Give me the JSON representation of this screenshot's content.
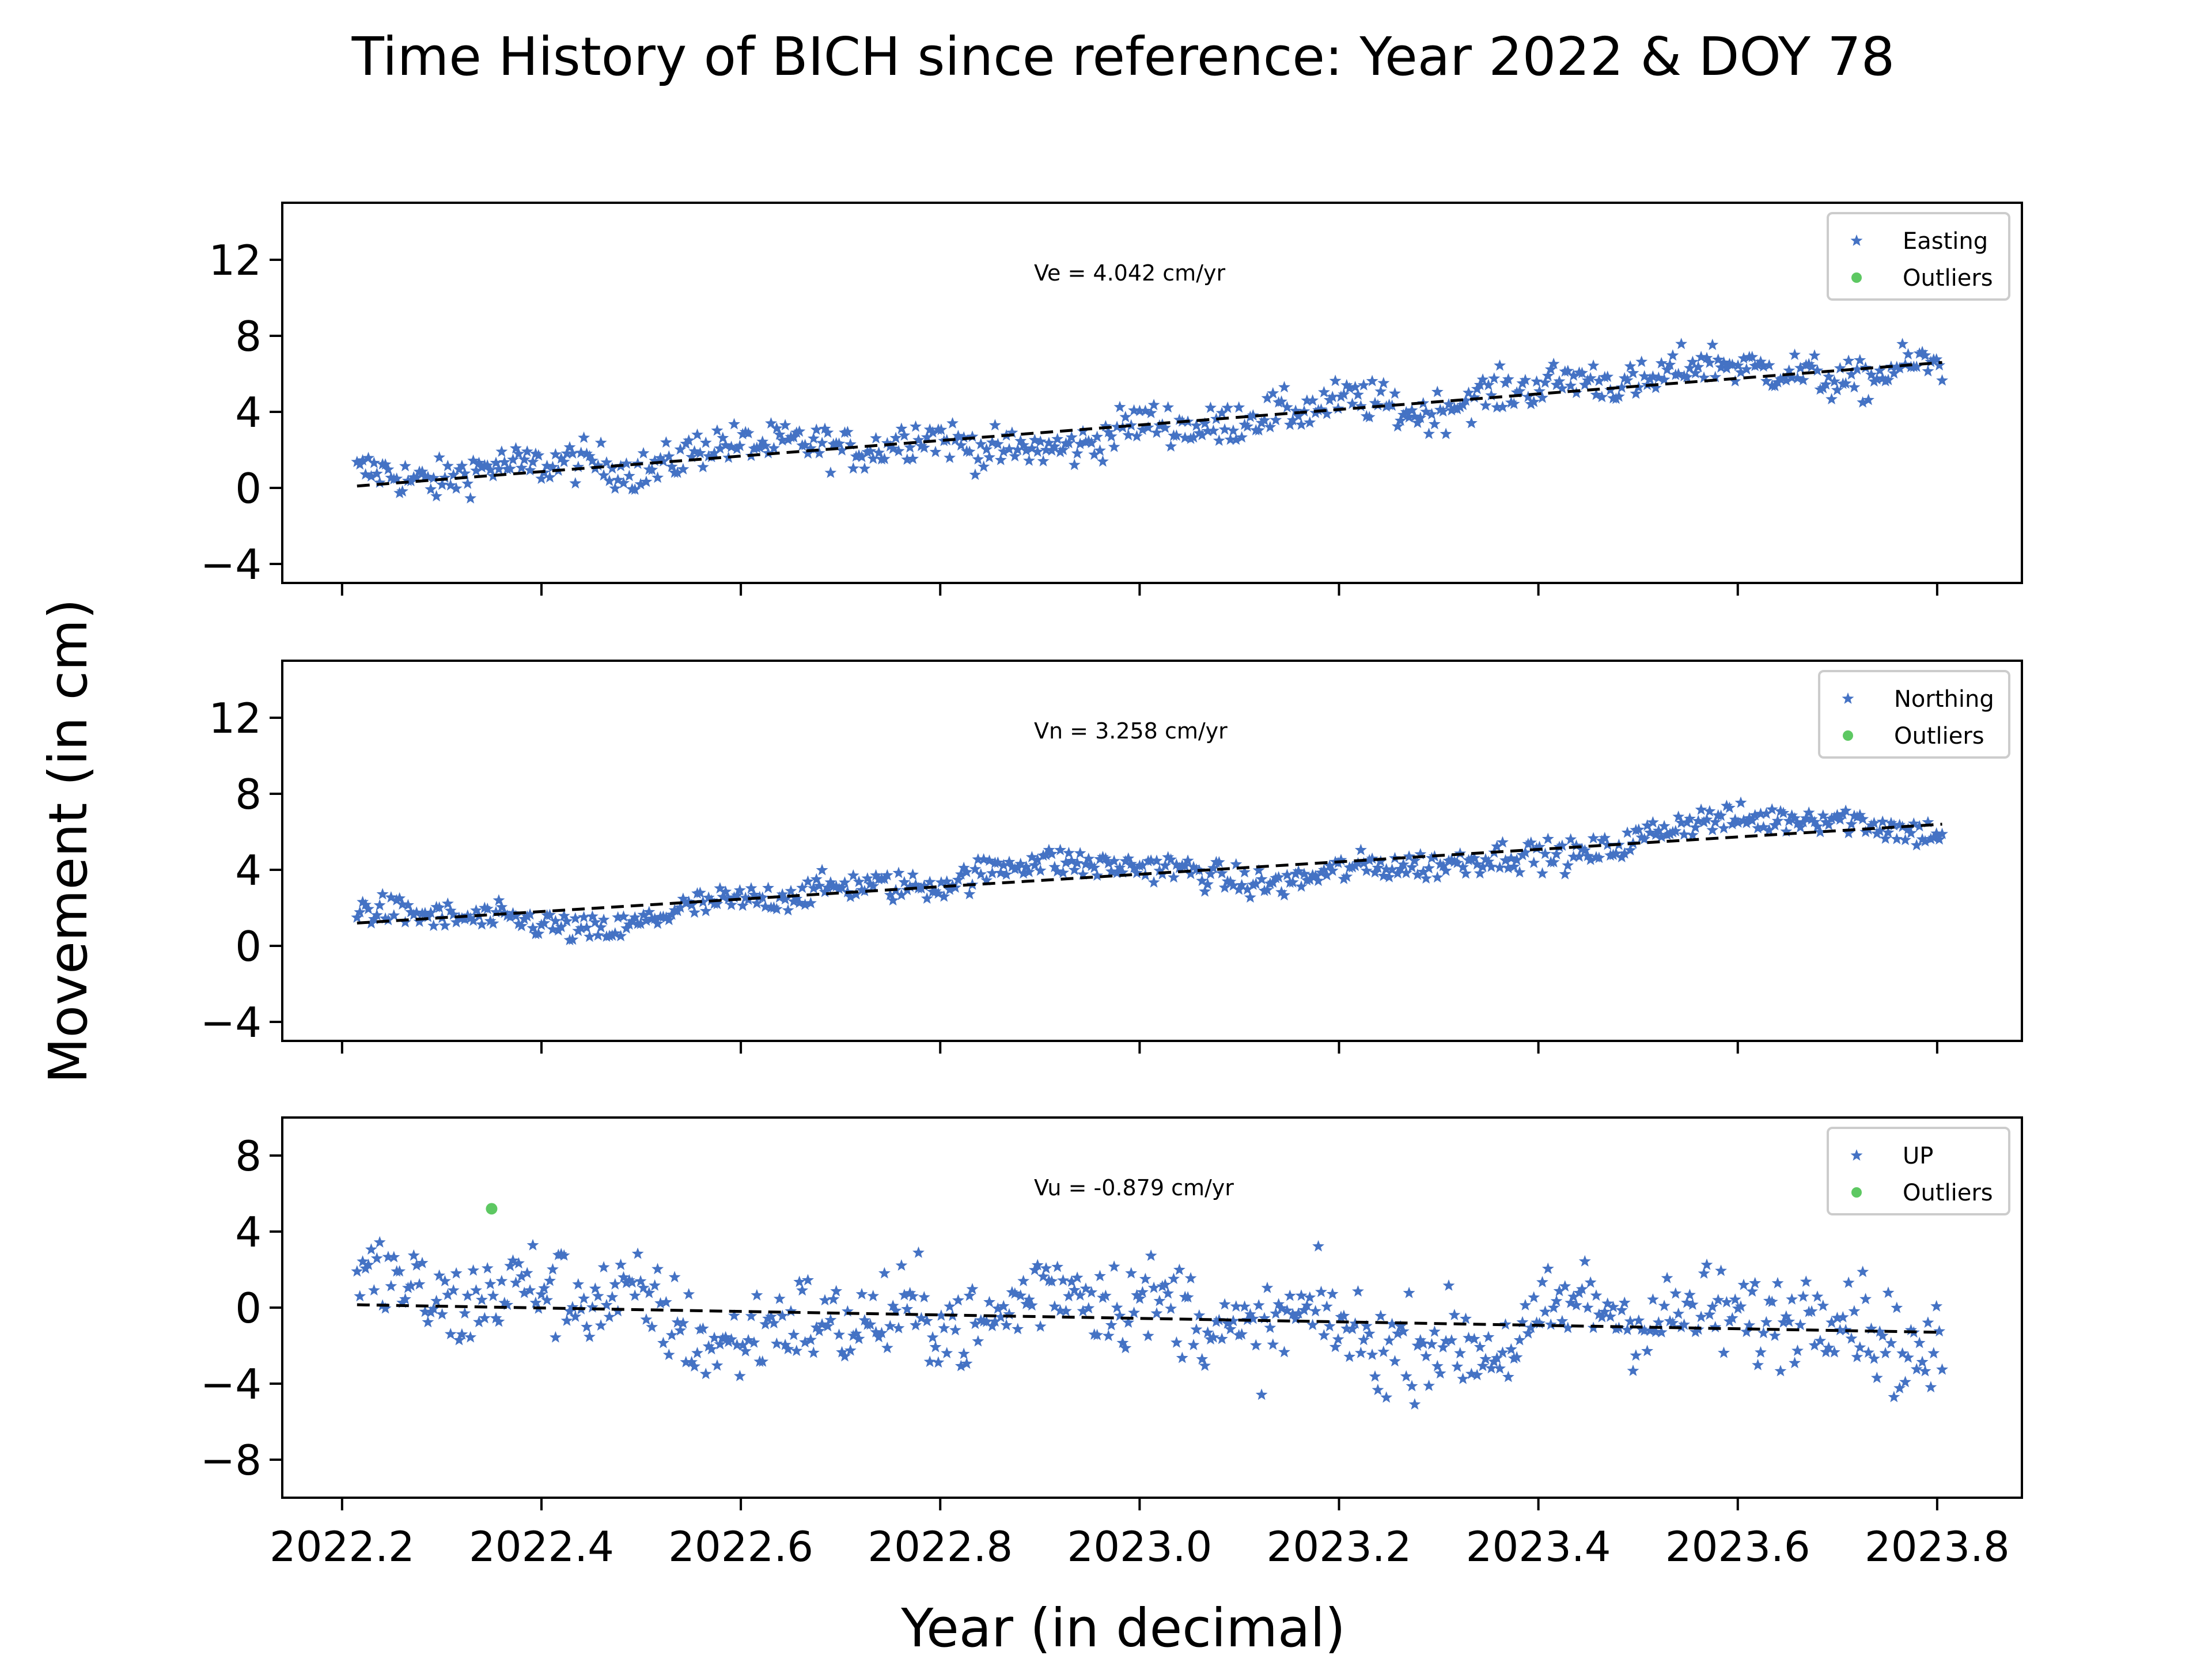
{
  "title": "Time History of BICH since reference: Year 2022 & DOY 78",
  "xlabel": "Year (in decimal)",
  "ylabel": "Movement (in cm)",
  "x_ticks": [
    "2022.2",
    "2022.4",
    "2022.6",
    "2022.8",
    "2023.0",
    "2023.2",
    "2023.4",
    "2023.6",
    "2023.8"
  ],
  "x_tick_values": [
    2022.2,
    2022.4,
    2022.6,
    2022.8,
    2023.0,
    2023.2,
    2023.4,
    2023.6,
    2023.8
  ],
  "colors": {
    "data": "#4472c4",
    "outlier": "#5dc862",
    "fit": "#000000",
    "axis": "#000000"
  },
  "chart_data": [
    {
      "type": "scatter",
      "series": [
        {
          "name": "Easting",
          "marker": "star"
        },
        {
          "name": "Outliers",
          "marker": "circle",
          "points": []
        }
      ],
      "annotation": "Ve =  4.042 cm/yr",
      "xlim": [
        2022.14,
        2023.885
      ],
      "ylim": [
        -5,
        15
      ],
      "y_ticks": [
        -4,
        0,
        4,
        8,
        12
      ],
      "trend": {
        "x": [
          2022.215,
          2023.805
        ],
        "y": [
          0.1,
          6.6
        ]
      },
      "noise": {
        "amplitude": 0.55,
        "wiggle": [
          [
            1.0,
            0.4,
            0.0
          ],
          [
            2.3,
            0.3,
            1.1
          ],
          [
            5.0,
            0.35,
            2.0
          ],
          [
            9.0,
            0.2,
            0.7
          ]
        ]
      },
      "legend": "top-right",
      "grid": false
    },
    {
      "type": "scatter",
      "series": [
        {
          "name": "Northing",
          "marker": "star"
        },
        {
          "name": "Outliers",
          "marker": "circle",
          "points": []
        }
      ],
      "annotation": "Vn =  3.258 cm/yr",
      "xlim": [
        2022.14,
        2023.885
      ],
      "ylim": [
        -5,
        15
      ],
      "y_ticks": [
        -4,
        0,
        4,
        8,
        12
      ],
      "trend": {
        "x": [
          2022.215,
          2023.805
        ],
        "y": [
          1.2,
          6.4
        ]
      },
      "noise": {
        "amplitude": 0.4,
        "wiggle": [
          [
            1.3,
            0.7,
            2.6
          ],
          [
            3.0,
            0.35,
            0.3
          ],
          [
            6.0,
            0.2,
            1.5
          ]
        ]
      },
      "legend": "top-right",
      "grid": false
    },
    {
      "type": "scatter",
      "series": [
        {
          "name": "UP",
          "marker": "star"
        },
        {
          "name": "Outliers",
          "marker": "circle",
          "points": [
            {
              "x": 2022.35,
              "y": 5.2
            }
          ]
        }
      ],
      "annotation": "Vu = -0.879 cm/yr",
      "xlim": [
        2022.14,
        2023.885
      ],
      "ylim": [
        -10,
        10
      ],
      "y_ticks": [
        -8,
        -4,
        0,
        4,
        8
      ],
      "trend": {
        "x": [
          2022.215,
          2023.805
        ],
        "y": [
          0.15,
          -1.3
        ]
      },
      "noise": {
        "amplitude": 1.25,
        "wiggle": [
          [
            1.6,
            1.0,
            0.4
          ],
          [
            4.0,
            0.6,
            1.9
          ],
          [
            7.5,
            0.5,
            0.2
          ]
        ]
      },
      "legend": "top-right",
      "grid": false
    }
  ]
}
